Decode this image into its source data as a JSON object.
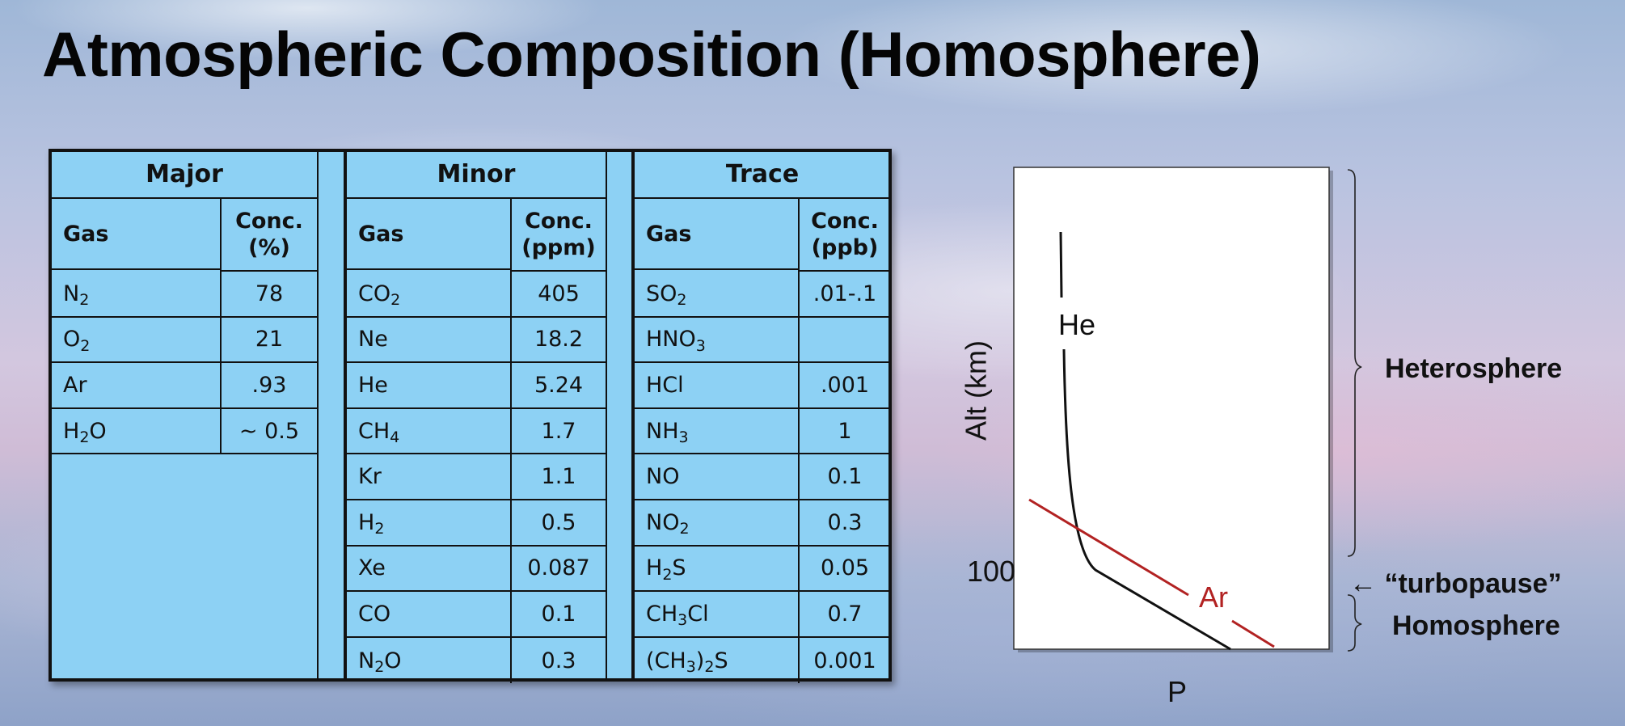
{
  "title": "Atmospheric Composition (Homosphere)",
  "table": {
    "major": {
      "header": "Major",
      "gas_col": "Gas",
      "conc_col": [
        "Conc.",
        "(%)"
      ],
      "rows": [
        {
          "gas": [
            "N",
            "2",
            ""
          ],
          "conc": "78"
        },
        {
          "gas": [
            "O",
            "2",
            ""
          ],
          "conc": "21"
        },
        {
          "gas": [
            "Ar",
            "",
            ""
          ],
          "conc": ".93"
        },
        {
          "gas": [
            "H",
            "2",
            "O"
          ],
          "conc": "~ 0.5"
        }
      ]
    },
    "minor": {
      "header": "Minor",
      "gas_col": "Gas",
      "conc_col": [
        "Conc.",
        "(ppm)"
      ],
      "rows": [
        {
          "gas": [
            "CO",
            "2",
            ""
          ],
          "conc": "405"
        },
        {
          "gas": [
            "Ne",
            "",
            ""
          ],
          "conc": "18.2"
        },
        {
          "gas": [
            "He",
            "",
            ""
          ],
          "conc": "5.24"
        },
        {
          "gas": [
            "CH",
            "4",
            ""
          ],
          "conc": "1.7"
        },
        {
          "gas": [
            "Kr",
            "",
            ""
          ],
          "conc": "1.1"
        },
        {
          "gas": [
            "H",
            "2",
            ""
          ],
          "conc": "0.5"
        },
        {
          "gas": [
            "Xe",
            "",
            ""
          ],
          "conc": "0.087"
        },
        {
          "gas": [
            "CO",
            "",
            ""
          ],
          "conc": "0.1"
        },
        {
          "gas": [
            "N",
            "2",
            "O"
          ],
          "conc": "0.3"
        }
      ]
    },
    "trace": {
      "header": "Trace",
      "gas_col": "Gas",
      "conc_col": [
        "Conc.",
        "(ppb)"
      ],
      "rows": [
        {
          "gas": [
            "SO",
            "2",
            ""
          ],
          "conc": ".01-.1"
        },
        {
          "gas": [
            "HNO",
            "3",
            ""
          ],
          "conc": ""
        },
        {
          "gas": [
            "HCl",
            "",
            ""
          ],
          "conc": ".001"
        },
        {
          "gas": [
            "NH",
            "3",
            ""
          ],
          "conc": "1"
        },
        {
          "gas": [
            "NO",
            "",
            ""
          ],
          "conc": "0.1"
        },
        {
          "gas": [
            "NO",
            "2",
            ""
          ],
          "conc": "0.3"
        },
        {
          "gas": [
            "H",
            "2",
            "S"
          ],
          "conc": "0.05"
        },
        {
          "gas": [
            "CH",
            "3",
            "Cl"
          ],
          "conc": "0.7"
        },
        {
          "gas": [
            "(CH",
            "3",
            ")",
            "2",
            "S"
          ],
          "conc": "0.001"
        }
      ]
    }
  },
  "diagram": {
    "y_label": "Alt (km)",
    "x_label": "P",
    "tick_100": "100",
    "he_label": "He",
    "ar_label": "Ar",
    "ar_color": "#b22222",
    "he_color": "#111111",
    "heterosphere": "Heterosphere",
    "turbopause": "← “turbopause”",
    "homosphere": "Homosphere"
  }
}
